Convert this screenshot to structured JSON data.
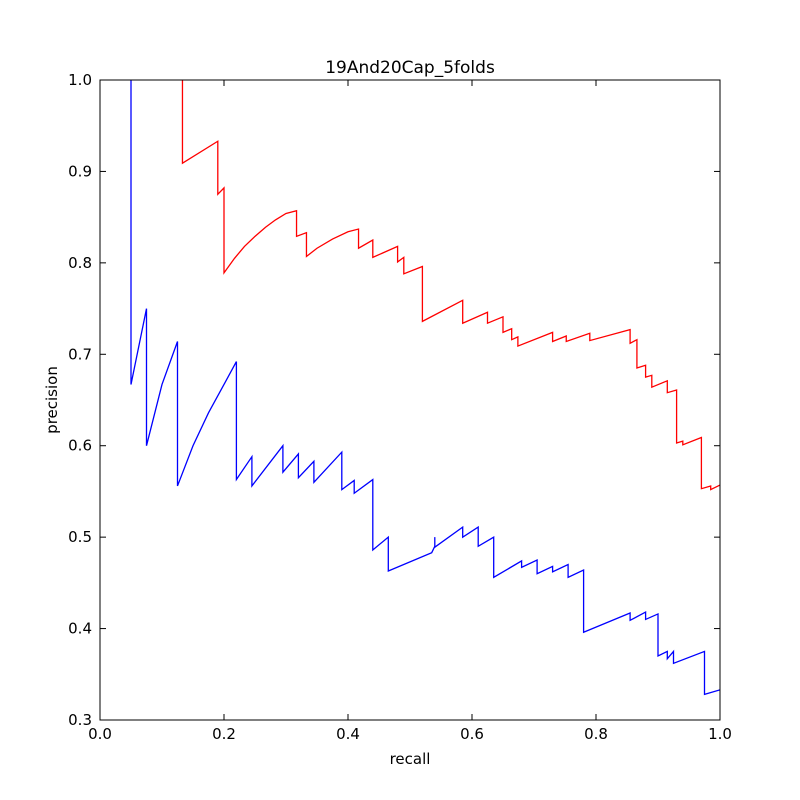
{
  "chart_data": {
    "type": "line",
    "title": "19And20Cap_5folds",
    "xlabel": "recall",
    "ylabel": "precision",
    "xlim": [
      0.0,
      1.0
    ],
    "ylim": [
      0.3,
      1.0
    ],
    "xticks": [
      "0.0",
      "0.2",
      "0.4",
      "0.6",
      "0.8",
      "1.0"
    ],
    "yticks": [
      "0.3",
      "0.4",
      "0.5",
      "0.6",
      "0.7",
      "0.8",
      "0.9",
      "1.0"
    ],
    "grid": false,
    "legend": "none",
    "series": [
      {
        "color": "#ff0000",
        "points": [
          [
            0.133,
            1.0
          ],
          [
            0.133,
            0.909
          ],
          [
            0.19,
            0.933
          ],
          [
            0.19,
            0.875
          ],
          [
            0.2,
            0.882
          ],
          [
            0.2,
            0.789
          ],
          [
            0.217,
            0.805
          ],
          [
            0.233,
            0.818
          ],
          [
            0.25,
            0.829
          ],
          [
            0.267,
            0.839
          ],
          [
            0.283,
            0.847
          ],
          [
            0.3,
            0.854
          ],
          [
            0.317,
            0.857
          ],
          [
            0.317,
            0.829
          ],
          [
            0.333,
            0.833
          ],
          [
            0.333,
            0.807
          ],
          [
            0.35,
            0.816
          ],
          [
            0.375,
            0.826
          ],
          [
            0.4,
            0.834
          ],
          [
            0.417,
            0.837
          ],
          [
            0.417,
            0.816
          ],
          [
            0.44,
            0.825
          ],
          [
            0.44,
            0.806
          ],
          [
            0.48,
            0.818
          ],
          [
            0.48,
            0.801
          ],
          [
            0.49,
            0.806
          ],
          [
            0.49,
            0.788
          ],
          [
            0.52,
            0.796
          ],
          [
            0.52,
            0.736
          ],
          [
            0.585,
            0.759
          ],
          [
            0.585,
            0.734
          ],
          [
            0.625,
            0.746
          ],
          [
            0.625,
            0.734
          ],
          [
            0.65,
            0.741
          ],
          [
            0.65,
            0.724
          ],
          [
            0.664,
            0.728
          ],
          [
            0.664,
            0.716
          ],
          [
            0.674,
            0.719
          ],
          [
            0.674,
            0.709
          ],
          [
            0.73,
            0.724
          ],
          [
            0.73,
            0.714
          ],
          [
            0.752,
            0.72
          ],
          [
            0.752,
            0.714
          ],
          [
            0.79,
            0.723
          ],
          [
            0.79,
            0.715
          ],
          [
            0.855,
            0.727
          ],
          [
            0.855,
            0.712
          ],
          [
            0.866,
            0.716
          ],
          [
            0.866,
            0.685
          ],
          [
            0.88,
            0.688
          ],
          [
            0.88,
            0.675
          ],
          [
            0.89,
            0.677
          ],
          [
            0.89,
            0.664
          ],
          [
            0.915,
            0.671
          ],
          [
            0.915,
            0.658
          ],
          [
            0.93,
            0.661
          ],
          [
            0.93,
            0.603
          ],
          [
            0.94,
            0.605
          ],
          [
            0.94,
            0.601
          ],
          [
            0.97,
            0.609
          ],
          [
            0.97,
            0.553
          ],
          [
            0.985,
            0.556
          ],
          [
            0.985,
            0.552
          ],
          [
            1.0,
            0.557
          ]
        ]
      },
      {
        "color": "#0000ff",
        "points": [
          [
            0.05,
            1.0
          ],
          [
            0.05,
            0.667
          ],
          [
            0.075,
            0.75
          ],
          [
            0.075,
            0.6
          ],
          [
            0.1,
            0.667
          ],
          [
            0.125,
            0.714
          ],
          [
            0.125,
            0.556
          ],
          [
            0.15,
            0.6
          ],
          [
            0.175,
            0.636
          ],
          [
            0.2,
            0.667
          ],
          [
            0.22,
            0.692
          ],
          [
            0.22,
            0.563
          ],
          [
            0.245,
            0.588
          ],
          [
            0.245,
            0.556
          ],
          [
            0.295,
            0.6
          ],
          [
            0.295,
            0.571
          ],
          [
            0.32,
            0.591
          ],
          [
            0.32,
            0.565
          ],
          [
            0.345,
            0.583
          ],
          [
            0.345,
            0.56
          ],
          [
            0.39,
            0.593
          ],
          [
            0.39,
            0.552
          ],
          [
            0.41,
            0.562
          ],
          [
            0.41,
            0.548
          ],
          [
            0.44,
            0.563
          ],
          [
            0.44,
            0.486
          ],
          [
            0.465,
            0.5
          ],
          [
            0.465,
            0.463
          ],
          [
            0.535,
            0.483
          ],
          [
            0.54,
            0.49
          ],
          [
            0.54,
            0.5
          ],
          [
            0.54,
            0.489
          ],
          [
            0.585,
            0.511
          ],
          [
            0.585,
            0.5
          ],
          [
            0.61,
            0.511
          ],
          [
            0.61,
            0.49
          ],
          [
            0.635,
            0.5
          ],
          [
            0.635,
            0.456
          ],
          [
            0.68,
            0.474
          ],
          [
            0.68,
            0.467
          ],
          [
            0.705,
            0.475
          ],
          [
            0.705,
            0.46
          ],
          [
            0.73,
            0.468
          ],
          [
            0.73,
            0.462
          ],
          [
            0.755,
            0.47
          ],
          [
            0.755,
            0.456
          ],
          [
            0.78,
            0.464
          ],
          [
            0.78,
            0.396
          ],
          [
            0.855,
            0.417
          ],
          [
            0.855,
            0.409
          ],
          [
            0.88,
            0.418
          ],
          [
            0.88,
            0.41
          ],
          [
            0.9,
            0.416
          ],
          [
            0.9,
            0.37
          ],
          [
            0.915,
            0.375
          ],
          [
            0.915,
            0.367
          ],
          [
            0.925,
            0.375
          ],
          [
            0.925,
            0.362
          ],
          [
            0.975,
            0.375
          ],
          [
            0.975,
            0.328
          ],
          [
            1.0,
            0.333
          ]
        ]
      }
    ]
  }
}
